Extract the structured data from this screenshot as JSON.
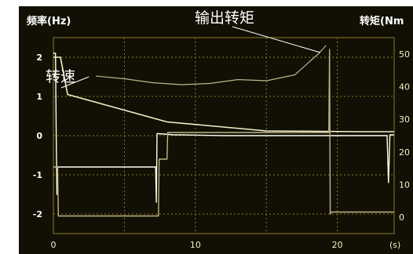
{
  "chart_data": {
    "type": "line",
    "title": "输出转矩",
    "ylabel": "频率(Hz)",
    "y2label": "转矩(Nm",
    "y_ticks": [
      "2",
      "1",
      "0",
      "-1",
      "-2"
    ],
    "y2_ticks": [
      "50",
      "40",
      "30",
      "20",
      "10",
      "0"
    ],
    "x_ticks": [
      "0",
      "10",
      "20"
    ],
    "x_label_partial": "(s)",
    "ylim": [
      -2.5,
      2.5
    ],
    "y2lim": [
      -5,
      55
    ],
    "xlim": [
      0,
      24
    ],
    "grid": true,
    "annotations": [
      {
        "label": "转速",
        "points_to": "speed"
      },
      {
        "label": "输出转矩",
        "points_to": "torque"
      }
    ],
    "series": [
      {
        "name": "转速",
        "axis": "left",
        "x": [
          0,
          0.5,
          1.0,
          8.0,
          15.0,
          21.5,
          22.0,
          24.0
        ],
        "y": [
          2,
          2,
          1.05,
          0.35,
          0.12,
          0.1,
          0.1,
          0.1
        ]
      },
      {
        "name": "输出转矩",
        "axis": "left",
        "x": [
          0,
          0.15,
          0.2,
          0.25,
          0.3,
          7.2,
          7.25,
          7.3,
          7.4,
          8.5,
          9.0,
          12.0,
          18.0,
          23.5,
          23.6,
          23.7,
          24.0
        ],
        "y": [
          2.1,
          2.1,
          0.0,
          -1.5,
          -0.8,
          -0.8,
          -1.7,
          0.05,
          0.05,
          0.02,
          0.02,
          0.0,
          0.0,
          0.0,
          -1.2,
          0.02,
          0.02
        ]
      },
      {
        "name": "",
        "axis": "left",
        "x": [
          0,
          0.3,
          0.35,
          7.4,
          7.45,
          8.0,
          8.05,
          19.4,
          19.45,
          19.5,
          19.55,
          24.0
        ],
        "y": [
          -0.8,
          -0.8,
          -2.05,
          -2.05,
          -0.6,
          -0.6,
          0.08,
          0.08,
          2.2,
          -2.0,
          -1.95,
          -1.95
        ]
      },
      {
        "name": "",
        "axis": "left",
        "x": [
          3.0,
          5.0,
          7.0,
          9.0,
          11.0,
          13.0,
          15.0,
          17.0,
          18.7,
          19.2
        ],
        "y": [
          1.52,
          1.45,
          1.35,
          1.3,
          1.33,
          1.43,
          1.4,
          1.55,
          2.1,
          2.3
        ]
      }
    ],
    "colors": {
      "background": "#ffffff",
      "plot_background": "#121004",
      "grid": "#8a7a28",
      "speed": "#f2f2c8",
      "trace_bright": "#fffff0",
      "trace_dim": "#bfb48a",
      "annotation": "#ffffff"
    }
  }
}
